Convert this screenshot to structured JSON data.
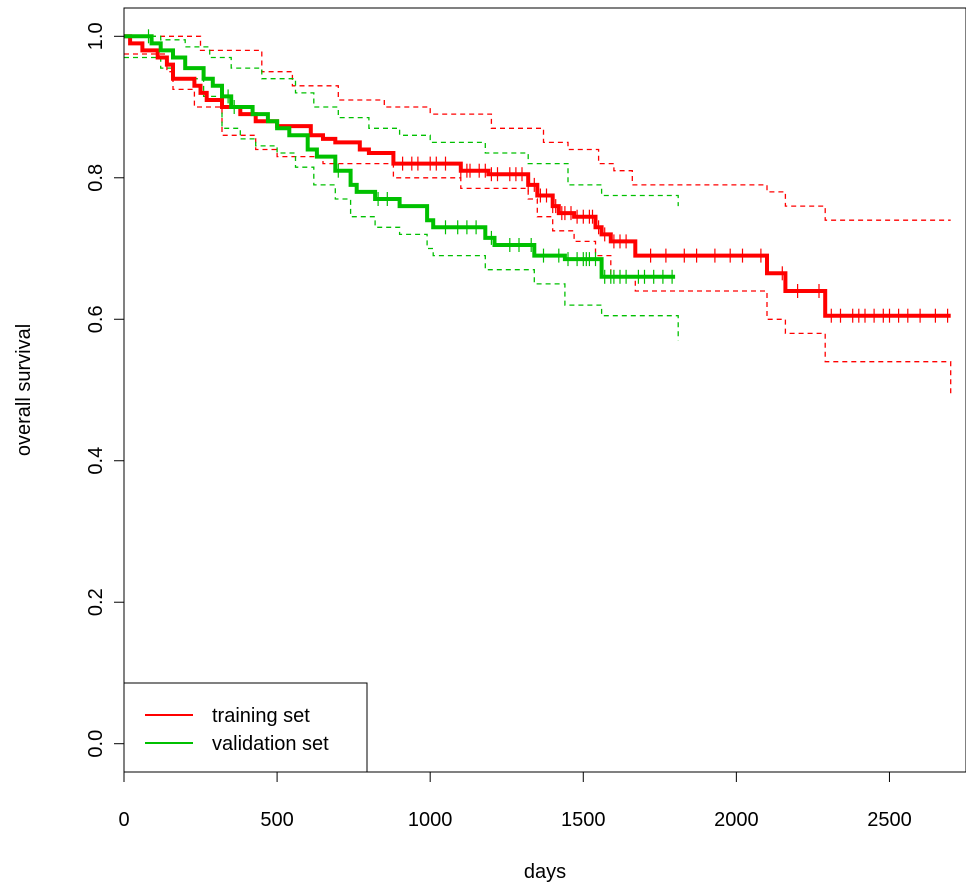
{
  "chart_data": {
    "type": "line",
    "title": "",
    "xlabel": "days",
    "ylabel": "overall survival",
    "xlim": [
      0,
      2750
    ],
    "ylim": [
      -0.04,
      1.04
    ],
    "x_ticks": [
      0,
      500,
      1000,
      1500,
      2000,
      2500
    ],
    "x_tick_labels": [
      "0",
      "500",
      "1000",
      "1500",
      "2000",
      "2500"
    ],
    "y_ticks": [
      0.0,
      0.2,
      0.4,
      0.6,
      0.8,
      1.0
    ],
    "y_tick_labels": [
      "0.0",
      "0.2",
      "0.4",
      "0.6",
      "0.8",
      "1.0"
    ],
    "grid": false,
    "legend_position": "bottom-left",
    "legend_entries": [
      "training set",
      "validation set"
    ],
    "series": [
      {
        "name": "training set",
        "color": "#FF0000",
        "steps": [
          [
            0,
            1.0
          ],
          [
            20,
            0.99
          ],
          [
            60,
            0.98
          ],
          [
            110,
            0.97
          ],
          [
            140,
            0.96
          ],
          [
            160,
            0.94
          ],
          [
            230,
            0.93
          ],
          [
            250,
            0.92
          ],
          [
            270,
            0.91
          ],
          [
            320,
            0.9
          ],
          [
            380,
            0.89
          ],
          [
            430,
            0.88
          ],
          [
            500,
            0.873
          ],
          [
            610,
            0.86
          ],
          [
            650,
            0.855
          ],
          [
            690,
            0.85
          ],
          [
            770,
            0.84
          ],
          [
            800,
            0.835
          ],
          [
            880,
            0.82
          ],
          [
            1100,
            0.81
          ],
          [
            1190,
            0.805
          ],
          [
            1320,
            0.79
          ],
          [
            1350,
            0.775
          ],
          [
            1400,
            0.76
          ],
          [
            1420,
            0.75
          ],
          [
            1470,
            0.745
          ],
          [
            1540,
            0.73
          ],
          [
            1560,
            0.72
          ],
          [
            1590,
            0.71
          ],
          [
            1670,
            0.69
          ],
          [
            2100,
            0.665
          ],
          [
            2160,
            0.64
          ],
          [
            2290,
            0.605
          ],
          [
            2700,
            0.605
          ]
        ],
        "censor_x": [
          910,
          940,
          960,
          1000,
          1020,
          1050,
          1100,
          1120,
          1130,
          1160,
          1180,
          1200,
          1220,
          1260,
          1280,
          1300,
          1320,
          1340,
          1360,
          1380,
          1400,
          1410,
          1430,
          1440,
          1460,
          1480,
          1500,
          1520,
          1530,
          1550,
          1570,
          1600,
          1620,
          1640,
          1720,
          1770,
          1830,
          1870,
          1930,
          1980,
          2020,
          2080,
          2150,
          2200,
          2270,
          2310,
          2340,
          2380,
          2400,
          2420,
          2450,
          2480,
          2500,
          2530,
          2560,
          2600,
          2650,
          2690
        ]
      },
      {
        "name": "validation set",
        "color": "#00C000",
        "steps": [
          [
            0,
            1.0
          ],
          [
            90,
            0.99
          ],
          [
            120,
            0.98
          ],
          [
            160,
            0.97
          ],
          [
            200,
            0.955
          ],
          [
            260,
            0.94
          ],
          [
            290,
            0.93
          ],
          [
            320,
            0.915
          ],
          [
            350,
            0.9
          ],
          [
            420,
            0.89
          ],
          [
            470,
            0.88
          ],
          [
            500,
            0.87
          ],
          [
            540,
            0.86
          ],
          [
            600,
            0.84
          ],
          [
            630,
            0.83
          ],
          [
            690,
            0.81
          ],
          [
            740,
            0.79
          ],
          [
            760,
            0.78
          ],
          [
            820,
            0.77
          ],
          [
            900,
            0.76
          ],
          [
            990,
            0.74
          ],
          [
            1010,
            0.73
          ],
          [
            1180,
            0.715
          ],
          [
            1210,
            0.705
          ],
          [
            1340,
            0.69
          ],
          [
            1440,
            0.685
          ],
          [
            1560,
            0.66
          ],
          [
            1800,
            0.66
          ]
        ],
        "censor_x": [
          80,
          340,
          360,
          700,
          830,
          860,
          1050,
          1090,
          1120,
          1150,
          1200,
          1260,
          1290,
          1330,
          1370,
          1420,
          1450,
          1480,
          1500,
          1510,
          1520,
          1540,
          1570,
          1590,
          1600,
          1620,
          1640,
          1680,
          1700,
          1730,
          1760,
          1790
        ],
        "ci_upper": [
          [
            0,
            1.0
          ],
          [
            120,
            0.995
          ],
          [
            200,
            0.985
          ],
          [
            280,
            0.97
          ],
          [
            350,
            0.955
          ],
          [
            450,
            0.94
          ],
          [
            560,
            0.92
          ],
          [
            620,
            0.9
          ],
          [
            700,
            0.885
          ],
          [
            800,
            0.87
          ],
          [
            900,
            0.86
          ],
          [
            1000,
            0.85
          ],
          [
            1180,
            0.835
          ],
          [
            1320,
            0.82
          ],
          [
            1450,
            0.79
          ],
          [
            1560,
            0.775
          ],
          [
            1810,
            0.76
          ]
        ],
        "ci_lower": [
          [
            0,
            0.97
          ],
          [
            120,
            0.955
          ],
          [
            160,
            0.94
          ],
          [
            260,
            0.915
          ],
          [
            320,
            0.87
          ],
          [
            380,
            0.855
          ],
          [
            430,
            0.845
          ],
          [
            500,
            0.835
          ],
          [
            560,
            0.815
          ],
          [
            620,
            0.79
          ],
          [
            690,
            0.77
          ],
          [
            740,
            0.745
          ],
          [
            820,
            0.73
          ],
          [
            900,
            0.72
          ],
          [
            990,
            0.7
          ],
          [
            1010,
            0.69
          ],
          [
            1180,
            0.67
          ],
          [
            1340,
            0.65
          ],
          [
            1440,
            0.62
          ],
          [
            1560,
            0.605
          ],
          [
            1810,
            0.57
          ]
        ]
      }
    ],
    "training_ci_upper": [
      [
        0,
        1.0
      ],
      [
        250,
        0.98
      ],
      [
        450,
        0.95
      ],
      [
        550,
        0.93
      ],
      [
        700,
        0.91
      ],
      [
        850,
        0.9
      ],
      [
        1000,
        0.89
      ],
      [
        1200,
        0.87
      ],
      [
        1370,
        0.85
      ],
      [
        1450,
        0.84
      ],
      [
        1550,
        0.82
      ],
      [
        1600,
        0.81
      ],
      [
        1660,
        0.79
      ],
      [
        2100,
        0.78
      ],
      [
        2160,
        0.76
      ],
      [
        2290,
        0.74
      ],
      [
        2700,
        0.74
      ]
    ],
    "training_ci_lower": [
      [
        0,
        0.975
      ],
      [
        140,
        0.95
      ],
      [
        160,
        0.925
      ],
      [
        230,
        0.9
      ],
      [
        320,
        0.86
      ],
      [
        430,
        0.84
      ],
      [
        500,
        0.83
      ],
      [
        650,
        0.82
      ],
      [
        880,
        0.8
      ],
      [
        1100,
        0.785
      ],
      [
        1320,
        0.77
      ],
      [
        1350,
        0.745
      ],
      [
        1400,
        0.725
      ],
      [
        1470,
        0.71
      ],
      [
        1540,
        0.69
      ],
      [
        1590,
        0.66
      ],
      [
        1670,
        0.64
      ],
      [
        2100,
        0.6
      ],
      [
        2160,
        0.58
      ],
      [
        2290,
        0.54
      ],
      [
        2700,
        0.495
      ]
    ]
  }
}
